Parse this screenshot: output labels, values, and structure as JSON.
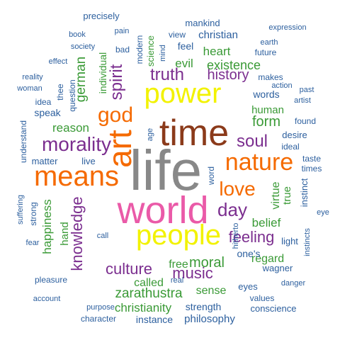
{
  "colors": {
    "blue": "#2c5f9e",
    "green": "#3a9a36",
    "purple": "#7b2e8f",
    "orange": "#f56a00",
    "brown": "#8b3a1a",
    "gray": "#888888",
    "pink": "#ea5aa8",
    "yellow": "#f2f200"
  },
  "words": [
    {
      "text": "life",
      "color": "gray"
    },
    {
      "text": "world",
      "color": "pink"
    },
    {
      "text": "time",
      "color": "brown"
    },
    {
      "text": "power",
      "color": "yellow"
    },
    {
      "text": "people",
      "color": "yellow"
    },
    {
      "text": "means",
      "color": "orange"
    },
    {
      "text": "art",
      "color": "orange"
    },
    {
      "text": "nature",
      "color": "orange"
    },
    {
      "text": "god",
      "color": "orange"
    },
    {
      "text": "love",
      "color": "orange"
    },
    {
      "text": "morality",
      "color": "purple"
    },
    {
      "text": "day",
      "color": "purple"
    },
    {
      "text": "soul",
      "color": "purple"
    },
    {
      "text": "truth",
      "color": "purple"
    },
    {
      "text": "spirit",
      "color": "purple"
    },
    {
      "text": "culture",
      "color": "purple"
    },
    {
      "text": "music",
      "color": "purple"
    },
    {
      "text": "knowledge",
      "color": "purple"
    },
    {
      "text": "feeling",
      "color": "purple"
    },
    {
      "text": "history",
      "color": "purple"
    },
    {
      "text": "moral",
      "color": "green"
    },
    {
      "text": "form",
      "color": "green"
    },
    {
      "text": "zarathustra",
      "color": "green"
    },
    {
      "text": "christianity",
      "color": "green"
    },
    {
      "text": "german",
      "color": "green"
    },
    {
      "text": "existence",
      "color": "green"
    },
    {
      "text": "heart",
      "color": "green"
    },
    {
      "text": "reason",
      "color": "green"
    },
    {
      "text": "happiness",
      "color": "green"
    },
    {
      "text": "belief",
      "color": "green"
    },
    {
      "text": "virtue",
      "color": "green"
    },
    {
      "text": "called",
      "color": "green"
    },
    {
      "text": "free",
      "color": "green"
    },
    {
      "text": "sense",
      "color": "green"
    },
    {
      "text": "regard",
      "color": "green"
    },
    {
      "text": "evil",
      "color": "green"
    },
    {
      "text": "true",
      "color": "green"
    },
    {
      "text": "human",
      "color": "green"
    },
    {
      "text": "individual",
      "color": "green"
    },
    {
      "text": "science",
      "color": "green"
    },
    {
      "text": "hand",
      "color": "green"
    },
    {
      "text": "precisely",
      "color": "blue"
    },
    {
      "text": "mankind",
      "color": "blue"
    },
    {
      "text": "expression",
      "color": "blue"
    },
    {
      "text": "book",
      "color": "blue"
    },
    {
      "text": "pain",
      "color": "blue"
    },
    {
      "text": "modern",
      "color": "blue"
    },
    {
      "text": "view",
      "color": "blue"
    },
    {
      "text": "christian",
      "color": "blue"
    },
    {
      "text": "earth",
      "color": "blue"
    },
    {
      "text": "society",
      "color": "blue"
    },
    {
      "text": "bad",
      "color": "blue"
    },
    {
      "text": "mind",
      "color": "blue"
    },
    {
      "text": "feel",
      "color": "blue"
    },
    {
      "text": "future",
      "color": "blue"
    },
    {
      "text": "effect",
      "color": "blue"
    },
    {
      "text": "question",
      "color": "blue"
    },
    {
      "text": "makes",
      "color": "blue"
    },
    {
      "text": "reality",
      "color": "blue"
    },
    {
      "text": "action",
      "color": "blue"
    },
    {
      "text": "woman",
      "color": "blue"
    },
    {
      "text": "thee",
      "color": "blue"
    },
    {
      "text": "past",
      "color": "blue"
    },
    {
      "text": "words",
      "color": "blue"
    },
    {
      "text": "idea",
      "color": "blue"
    },
    {
      "text": "artist",
      "color": "blue"
    },
    {
      "text": "speak",
      "color": "blue"
    },
    {
      "text": "understand",
      "color": "blue"
    },
    {
      "text": "found",
      "color": "blue"
    },
    {
      "text": "desire",
      "color": "blue"
    },
    {
      "text": "age",
      "color": "blue"
    },
    {
      "text": "ideal",
      "color": "blue"
    },
    {
      "text": "matter",
      "color": "blue"
    },
    {
      "text": "live",
      "color": "blue"
    },
    {
      "text": "taste",
      "color": "blue"
    },
    {
      "text": "times",
      "color": "blue"
    },
    {
      "text": "word",
      "color": "blue"
    },
    {
      "text": "instinct",
      "color": "blue"
    },
    {
      "text": "suffering",
      "color": "blue"
    },
    {
      "text": "strong",
      "color": "blue"
    },
    {
      "text": "hitherto",
      "color": "blue"
    },
    {
      "text": "eye",
      "color": "blue"
    },
    {
      "text": "call",
      "color": "blue"
    },
    {
      "text": "light",
      "color": "blue"
    },
    {
      "text": "fear",
      "color": "blue"
    },
    {
      "text": "instincts",
      "color": "blue"
    },
    {
      "text": "real",
      "color": "blue"
    },
    {
      "text": "one's",
      "color": "blue"
    },
    {
      "text": "wagner",
      "color": "blue"
    },
    {
      "text": "pleasure",
      "color": "blue"
    },
    {
      "text": "eyes",
      "color": "blue"
    },
    {
      "text": "danger",
      "color": "blue"
    },
    {
      "text": "account",
      "color": "blue"
    },
    {
      "text": "values",
      "color": "blue"
    },
    {
      "text": "purpose",
      "color": "blue"
    },
    {
      "text": "strength",
      "color": "blue"
    },
    {
      "text": "conscience",
      "color": "blue"
    },
    {
      "text": "character",
      "color": "blue"
    },
    {
      "text": "instance",
      "color": "blue"
    },
    {
      "text": "philosophy",
      "color": "blue"
    }
  ]
}
